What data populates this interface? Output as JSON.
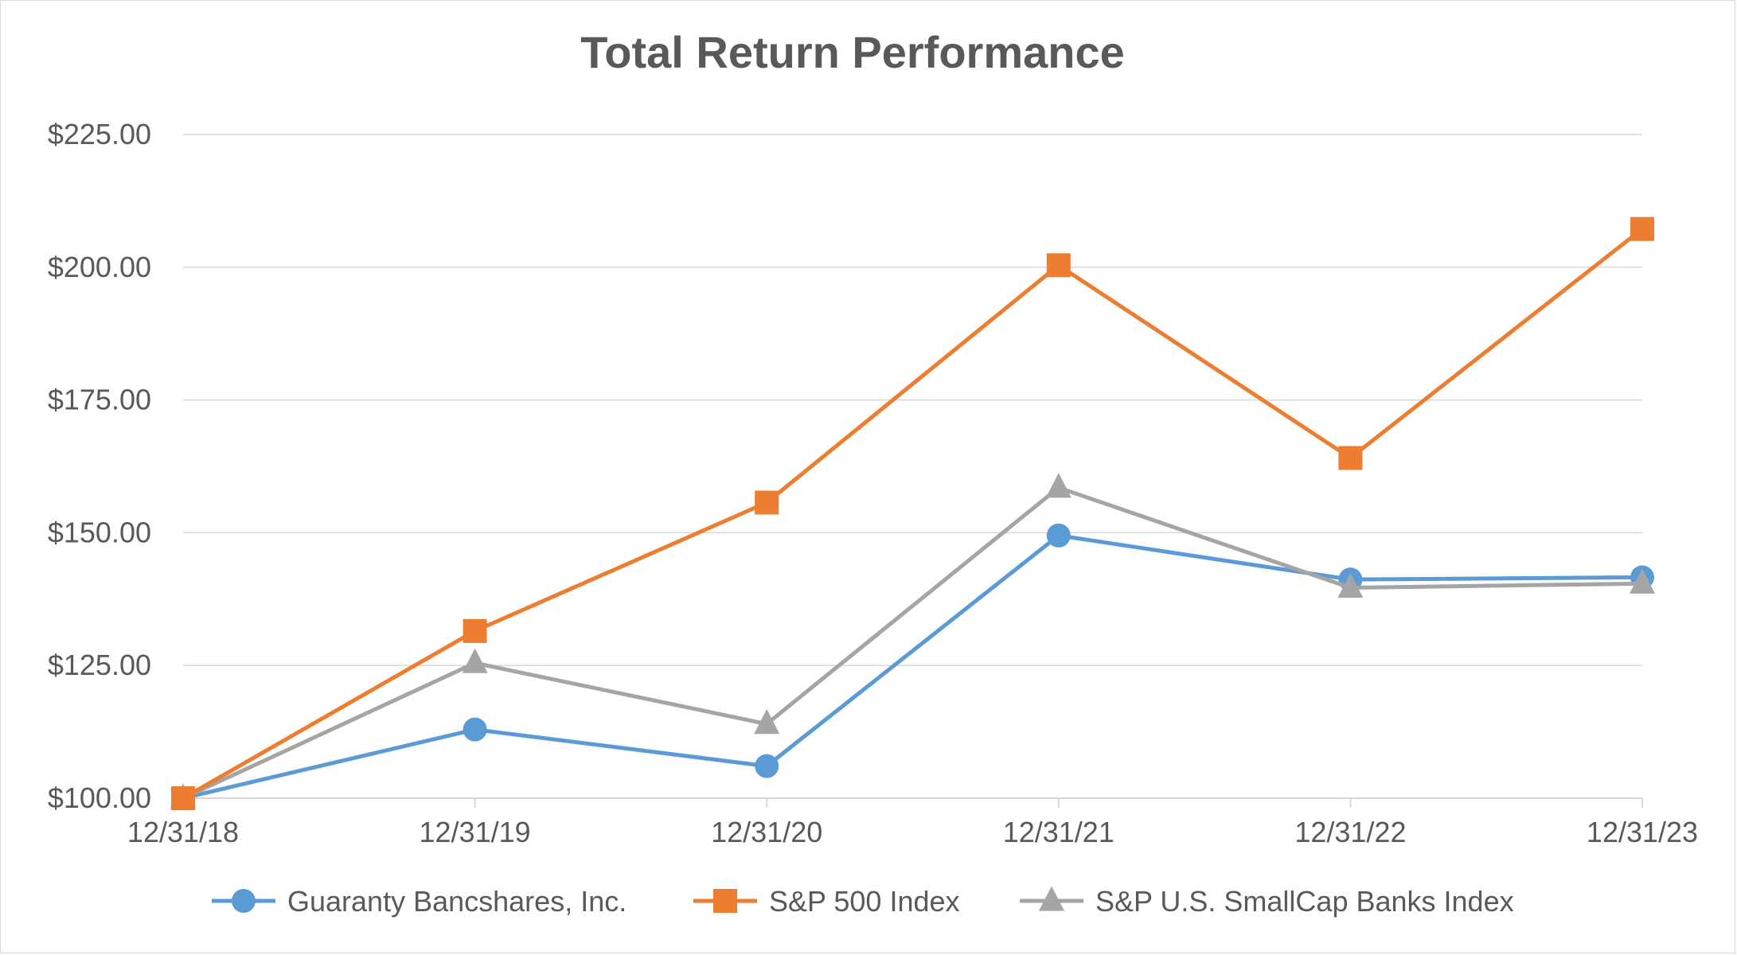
{
  "chart_data": {
    "type": "line",
    "title": "Total Return Performance",
    "xlabel": "",
    "ylabel": "",
    "categories": [
      "12/31/18",
      "12/31/19",
      "12/31/20",
      "12/31/21",
      "12/31/22",
      "12/31/23"
    ],
    "y_ticks": [
      "$100.00",
      "$125.00",
      "$150.00",
      "$175.00",
      "$200.00",
      "$225.00"
    ],
    "y_tick_values": [
      100,
      125,
      150,
      175,
      200,
      225
    ],
    "ylim": [
      100,
      225
    ],
    "grid": true,
    "legend_position": "bottom",
    "series": [
      {
        "name": "Guaranty Bancshares, Inc.",
        "color": "#5b9bd5",
        "marker": "circle",
        "values": [
          100.0,
          112.94,
          106.05,
          149.48,
          141.19,
          141.6
        ]
      },
      {
        "name": "S&P 500 Index",
        "color": "#ed7d31",
        "marker": "square",
        "values": [
          100.0,
          131.49,
          155.68,
          200.37,
          164.08,
          207.21
        ]
      },
      {
        "name": "S&P U.S. SmallCap Banks Index",
        "color": "#a5a5a5",
        "marker": "triangle",
        "values": [
          100.0,
          125.46,
          113.99,
          158.49,
          139.64,
          140.42
        ]
      }
    ]
  }
}
